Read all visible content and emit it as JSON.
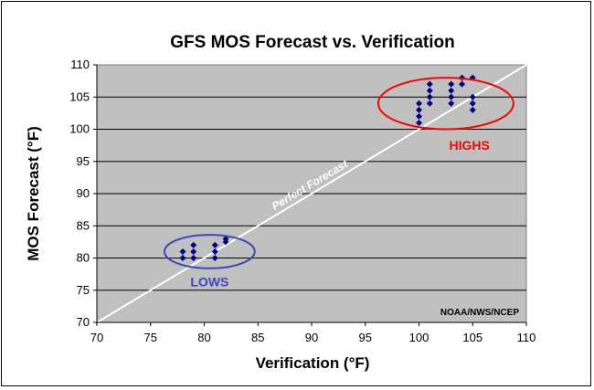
{
  "chart_data": {
    "type": "scatter",
    "title": "GFS MOS Forecast vs. Verification",
    "xlabel": "Verification (°F)",
    "ylabel": "MOS Forecast (°F)",
    "xlim": [
      70,
      110
    ],
    "ylim": [
      70,
      110
    ],
    "x_ticks": [
      "70",
      "75",
      "80",
      "85",
      "90",
      "95",
      "100",
      "105",
      "110"
    ],
    "y_ticks": [
      "70",
      "75",
      "80",
      "85",
      "90",
      "95",
      "100",
      "105",
      "110"
    ],
    "grid": "horizontal",
    "background_color": "#c0c0c0",
    "marker_color": "#000080",
    "series": [
      {
        "points": [
          [
            78,
            80
          ],
          [
            78,
            81
          ],
          [
            79,
            80
          ],
          [
            79,
            81
          ],
          [
            79,
            82
          ],
          [
            81,
            80
          ],
          [
            81,
            81
          ],
          [
            81,
            82
          ],
          [
            82,
            82.5
          ],
          [
            82,
            83
          ],
          [
            100,
            101
          ],
          [
            100,
            102
          ],
          [
            100,
            103
          ],
          [
            100,
            104
          ],
          [
            101,
            104
          ],
          [
            101,
            105
          ],
          [
            101,
            106
          ],
          [
            101,
            107
          ],
          [
            103,
            104
          ],
          [
            103,
            105
          ],
          [
            103,
            106
          ],
          [
            103,
            107
          ],
          [
            104,
            107
          ],
          [
            104,
            108
          ],
          [
            105,
            103
          ],
          [
            105,
            104
          ],
          [
            105,
            105
          ],
          [
            105,
            108
          ]
        ]
      }
    ],
    "reference_line": {
      "label": "Perfect Forecast",
      "from": [
        70,
        70
      ],
      "to": [
        110,
        110
      ],
      "color": "#ffffff"
    },
    "annotations": [
      {
        "text": "HIGHS",
        "color": "#ff0000",
        "ellipse_center": [
          102.5,
          104
        ],
        "ellipse_radius": [
          6.3,
          4
        ],
        "label_at": [
          104.7,
          96.8
        ]
      },
      {
        "text": "LOWS",
        "color": "#3f48b8",
        "ellipse_center": [
          80.5,
          81
        ],
        "ellipse_radius": [
          4.2,
          2.6
        ],
        "label_at": [
          80.5,
          75.6
        ]
      }
    ],
    "credit": "NOAA/NWS/NCEP"
  }
}
